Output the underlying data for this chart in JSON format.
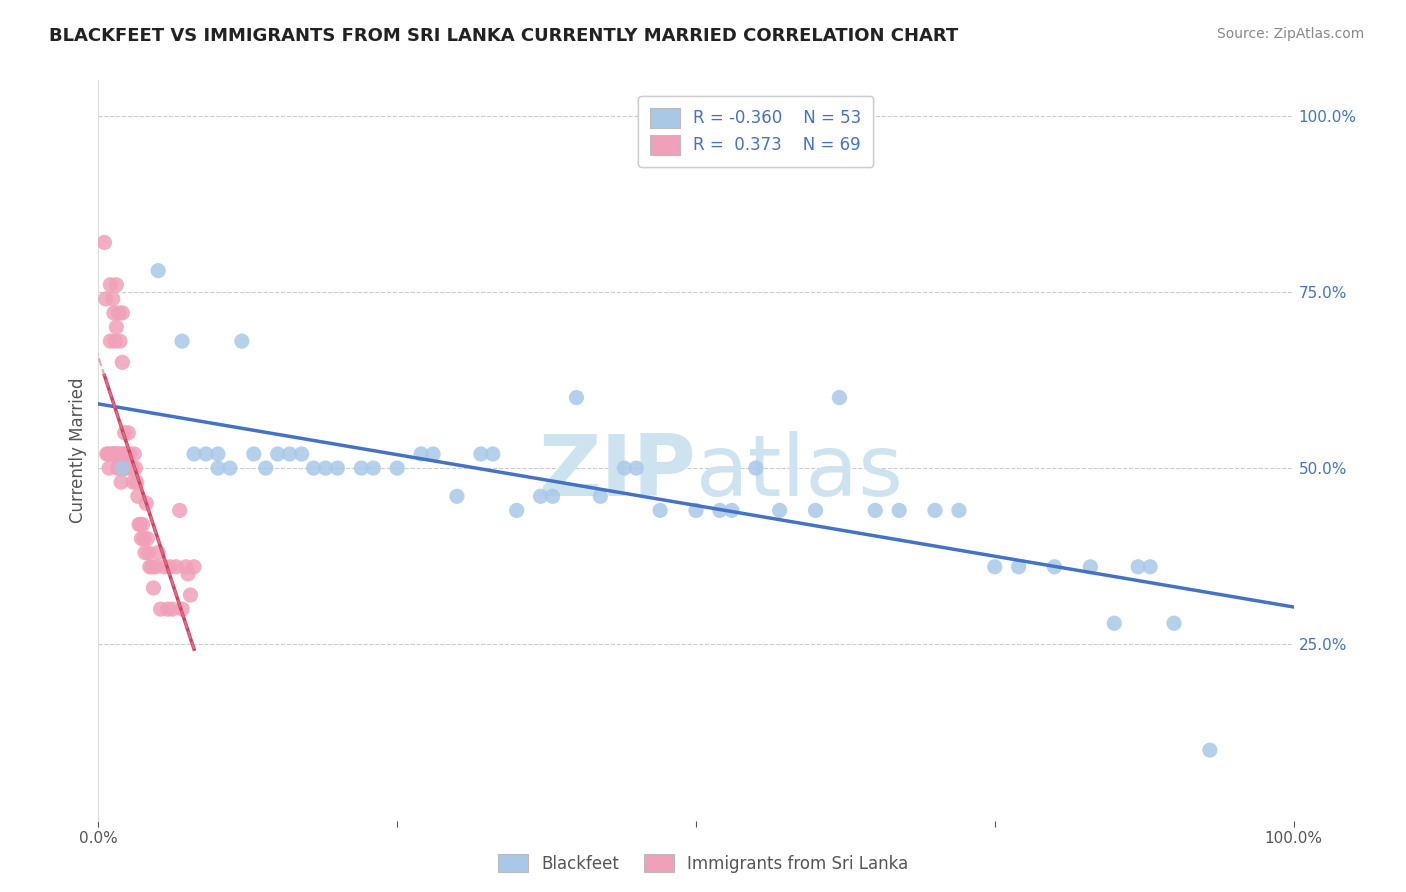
{
  "title": "BLACKFEET VS IMMIGRANTS FROM SRI LANKA CURRENTLY MARRIED CORRELATION CHART",
  "source": "Source: ZipAtlas.com",
  "ylabel": "Currently Married",
  "R1": -0.36,
  "N1": 53,
  "R2": 0.373,
  "N2": 69,
  "legend_label1": "Blackfeet",
  "legend_label2": "Immigrants from Sri Lanka",
  "blue_color": "#a8c8e8",
  "pink_color": "#f0a0b8",
  "blue_line_color": "#4472c4",
  "pink_line_color": "#d04060",
  "pink_dash_color": "#e08090",
  "watermark_color": "#cde4f0",
  "background_color": "#ffffff",
  "blue_scatter_x": [
    0.02,
    0.05,
    0.07,
    0.08,
    0.09,
    0.1,
    0.1,
    0.11,
    0.12,
    0.13,
    0.14,
    0.15,
    0.16,
    0.17,
    0.18,
    0.19,
    0.2,
    0.22,
    0.23,
    0.25,
    0.27,
    0.28,
    0.3,
    0.32,
    0.33,
    0.35,
    0.37,
    0.38,
    0.4,
    0.42,
    0.44,
    0.45,
    0.47,
    0.5,
    0.52,
    0.53,
    0.55,
    0.57,
    0.6,
    0.62,
    0.65,
    0.67,
    0.7,
    0.72,
    0.75,
    0.77,
    0.8,
    0.83,
    0.85,
    0.87,
    0.88,
    0.9,
    0.93
  ],
  "blue_scatter_y": [
    0.5,
    0.78,
    0.68,
    0.52,
    0.52,
    0.52,
    0.5,
    0.5,
    0.68,
    0.52,
    0.5,
    0.52,
    0.52,
    0.52,
    0.5,
    0.5,
    0.5,
    0.5,
    0.5,
    0.5,
    0.52,
    0.52,
    0.46,
    0.52,
    0.52,
    0.44,
    0.46,
    0.46,
    0.6,
    0.46,
    0.5,
    0.5,
    0.44,
    0.44,
    0.44,
    0.44,
    0.5,
    0.44,
    0.44,
    0.6,
    0.44,
    0.44,
    0.44,
    0.44,
    0.36,
    0.36,
    0.36,
    0.36,
    0.28,
    0.36,
    0.36,
    0.28,
    0.1
  ],
  "pink_scatter_x": [
    0.005,
    0.006,
    0.007,
    0.008,
    0.009,
    0.01,
    0.01,
    0.011,
    0.012,
    0.012,
    0.013,
    0.013,
    0.014,
    0.014,
    0.015,
    0.015,
    0.015,
    0.016,
    0.016,
    0.017,
    0.017,
    0.018,
    0.018,
    0.018,
    0.019,
    0.02,
    0.02,
    0.02,
    0.021,
    0.021,
    0.022,
    0.022,
    0.023,
    0.024,
    0.025,
    0.026,
    0.027,
    0.028,
    0.029,
    0.03,
    0.031,
    0.032,
    0.033,
    0.034,
    0.035,
    0.036,
    0.037,
    0.038,
    0.039,
    0.04,
    0.041,
    0.042,
    0.043,
    0.045,
    0.046,
    0.048,
    0.05,
    0.052,
    0.055,
    0.058,
    0.06,
    0.062,
    0.065,
    0.068,
    0.07,
    0.073,
    0.075,
    0.077,
    0.08
  ],
  "pink_scatter_y": [
    0.82,
    0.74,
    0.52,
    0.52,
    0.5,
    0.76,
    0.68,
    0.52,
    0.74,
    0.52,
    0.72,
    0.52,
    0.68,
    0.52,
    0.76,
    0.7,
    0.52,
    0.52,
    0.5,
    0.72,
    0.5,
    0.68,
    0.52,
    0.5,
    0.48,
    0.72,
    0.65,
    0.52,
    0.52,
    0.5,
    0.55,
    0.5,
    0.52,
    0.5,
    0.55,
    0.52,
    0.5,
    0.5,
    0.48,
    0.52,
    0.5,
    0.48,
    0.46,
    0.42,
    0.42,
    0.4,
    0.42,
    0.4,
    0.38,
    0.45,
    0.4,
    0.38,
    0.36,
    0.36,
    0.33,
    0.36,
    0.38,
    0.3,
    0.36,
    0.3,
    0.36,
    0.3,
    0.36,
    0.44,
    0.3,
    0.36,
    0.35,
    0.32,
    0.36
  ]
}
